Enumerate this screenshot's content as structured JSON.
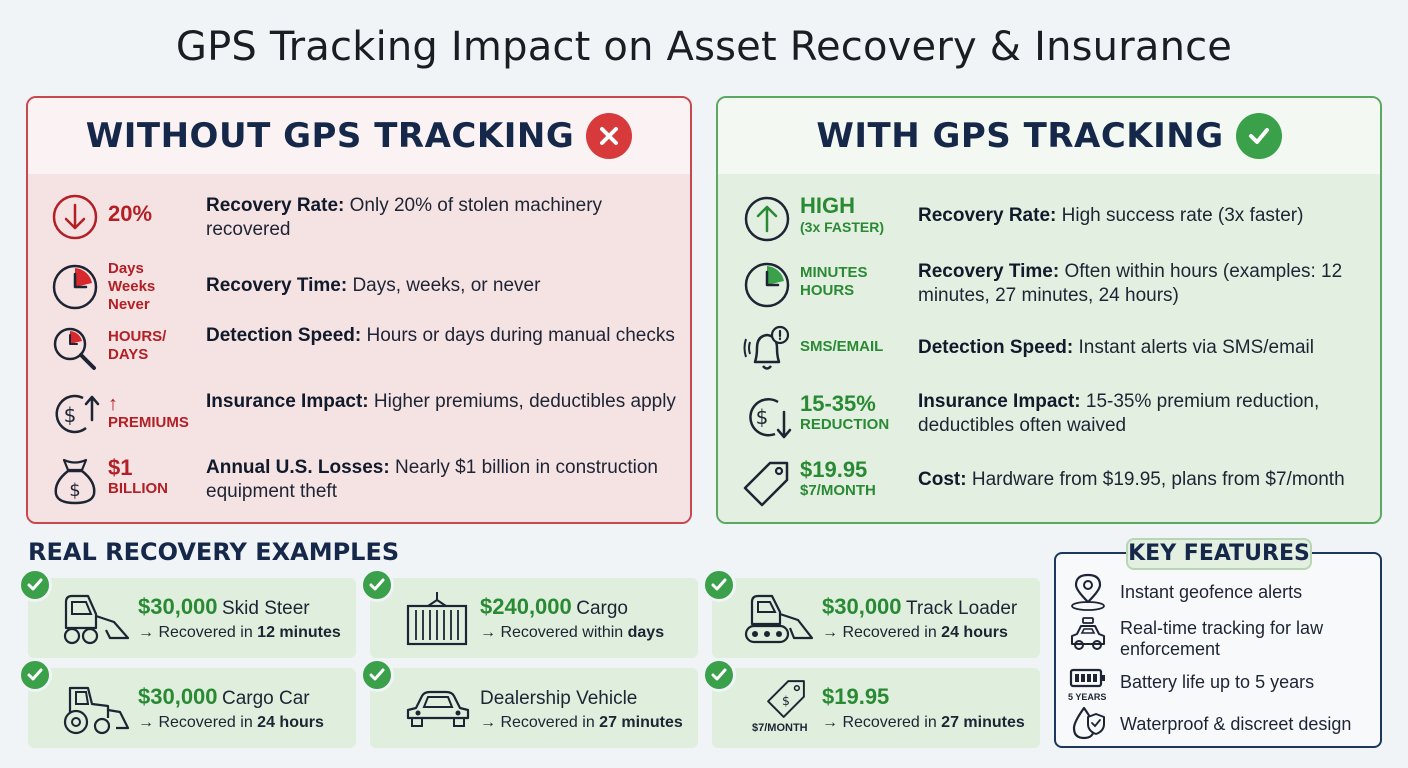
{
  "title": "GPS Tracking Impact on Asset Recovery & Insurance",
  "colors": {
    "danger": "#c9474f",
    "success": "#3aa04a",
    "navy": "#15284a"
  },
  "without": {
    "title": "WITHOUT GPS TRACKING",
    "rows": [
      {
        "icon": "down-arrow-circle-icon",
        "metric": "20%",
        "label": "Recovery Rate:",
        "text": " Only 20% of stolen machinery recovered"
      },
      {
        "icon": "clock-icon",
        "metric_lines": [
          "Days",
          "Weeks",
          "Never"
        ],
        "label": "Recovery Time:",
        "text": " Days, weeks, or never"
      },
      {
        "icon": "magnifier-clock-icon",
        "metric_lines": [
          "HOURS/",
          "DAYS"
        ],
        "label": "Detection Speed:",
        "text": " Hours or days during manual checks"
      },
      {
        "icon": "dollar-up-icon",
        "metric_lines": [
          "↑",
          "PREMIUMS"
        ],
        "label": "Insurance Impact:",
        "text": " Higher premiums, deductibles apply"
      },
      {
        "icon": "money-bag-icon",
        "metric_lines": [
          "$1",
          "BILLION"
        ],
        "label": "Annual U.S. Losses:",
        "text": " Nearly $1 billion in construction equipment theft"
      }
    ]
  },
  "with": {
    "title": "WITH GPS TRACKING",
    "rows": [
      {
        "icon": "up-arrow-circle-icon",
        "metric_lines": [
          "HIGH",
          "(3x FASTER)"
        ],
        "label": "Recovery Rate:",
        "text": " High success rate (3x faster)"
      },
      {
        "icon": "clock-icon",
        "metric_lines": [
          "MINUTES",
          "HOURS"
        ],
        "label": "Recovery Time:",
        "text": " Often within hours (examples: 12 minutes, 27 minutes, 24 hours)"
      },
      {
        "icon": "alert-bell-icon",
        "metric": "SMS/EMAIL",
        "label": "Detection Speed:",
        "text": " Instant alerts via SMS/email"
      },
      {
        "icon": "dollar-down-icon",
        "metric_lines": [
          "15-35%",
          "REDUCTION"
        ],
        "label": "Insurance Impact:",
        "text": " 15-35% premium reduction, deductibles often waived"
      },
      {
        "icon": "price-tag-icon",
        "metric_lines": [
          "$19.95",
          "$7/MONTH"
        ],
        "label": "Cost:",
        "text": " Hardware from $19.95, plans from $7/month"
      }
    ]
  },
  "examples": {
    "title": "REAL RECOVERY EXAMPLES",
    "items": [
      {
        "icon": "skid-steer-icon",
        "amount": "$30,000",
        "what": "Skid Steer",
        "prefix": "→ Recovered in ",
        "time": "12 minutes"
      },
      {
        "icon": "cargo-container-icon",
        "amount": "$240,000",
        "what": "Cargo",
        "prefix": "→ Recovered within ",
        "time": "days"
      },
      {
        "icon": "track-loader-icon",
        "amount": "$30,000",
        "what": "Track Loader",
        "prefix": "→ Recovered in ",
        "time": "24 hours"
      },
      {
        "icon": "tractor-icon",
        "amount": "$30,000",
        "what": "Cargo Car",
        "prefix": "→ Recovered in ",
        "time": "24 hours"
      },
      {
        "icon": "car-icon",
        "amount": "",
        "what": "Dealership Vehicle",
        "prefix": "→ Recovered in ",
        "time": "27 minutes"
      },
      {
        "icon": "price-tag-icon",
        "icon_caption": "$7/MONTH",
        "amount": "$19.95",
        "what": "",
        "prefix": "→ Recovered in ",
        "time": "27 minutes"
      }
    ]
  },
  "features": {
    "title": "KEY FEATURES",
    "items": [
      {
        "icon": "map-pin-icon",
        "text": "Instant geofence alerts"
      },
      {
        "icon": "police-car-icon",
        "text": "Real-time tracking for law enforcement"
      },
      {
        "icon": "battery-icon",
        "caption": "5 YEARS",
        "text": "Battery life up to 5 years"
      },
      {
        "icon": "water-drop-shield-icon",
        "text": "Waterproof & discreet design"
      }
    ]
  }
}
